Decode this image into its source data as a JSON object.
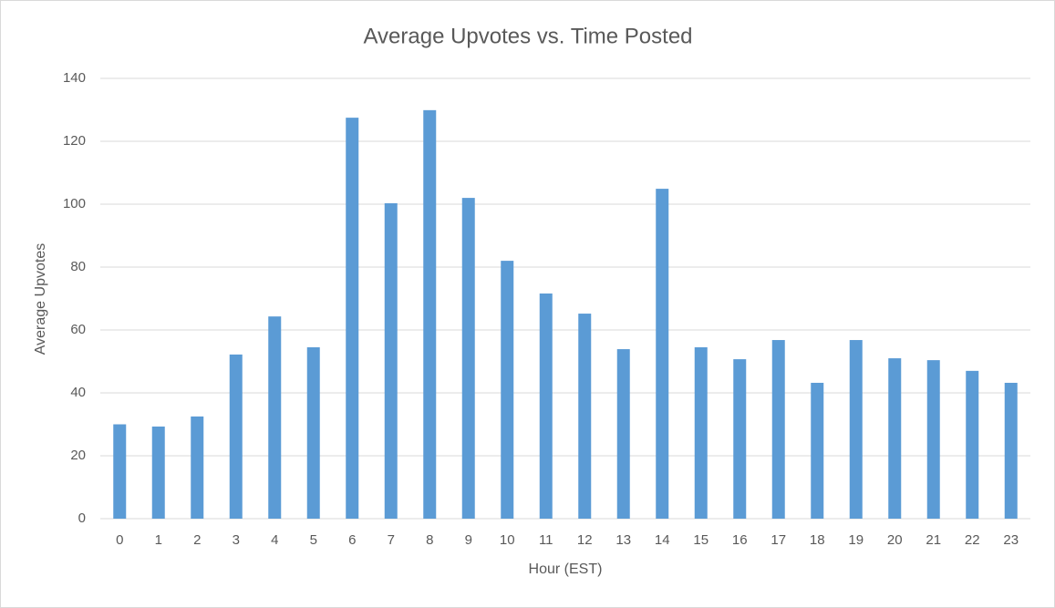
{
  "chart_data": {
    "type": "bar",
    "title": "Average Upvotes vs. Time Posted",
    "x_label": "Hour (EST)",
    "y_label": "Average Upvotes",
    "categories": [
      "0",
      "1",
      "2",
      "3",
      "4",
      "5",
      "6",
      "7",
      "8",
      "9",
      "10",
      "11",
      "12",
      "13",
      "14",
      "15",
      "16",
      "17",
      "18",
      "19",
      "20",
      "21",
      "22",
      "23"
    ],
    "values": [
      30,
      29.3,
      32.5,
      52.2,
      64.3,
      54.5,
      127.5,
      100.3,
      129.9,
      102,
      82,
      71.6,
      65.2,
      53.9,
      104.9,
      54.5,
      50.7,
      56.8,
      43.2,
      56.8,
      51,
      50.4,
      47,
      43.2
    ],
    "color": "#5b9bd5",
    "ylim": [
      0,
      140
    ],
    "yticks": [
      0,
      20,
      40,
      60,
      80,
      100,
      120,
      140
    ],
    "grid": true
  }
}
